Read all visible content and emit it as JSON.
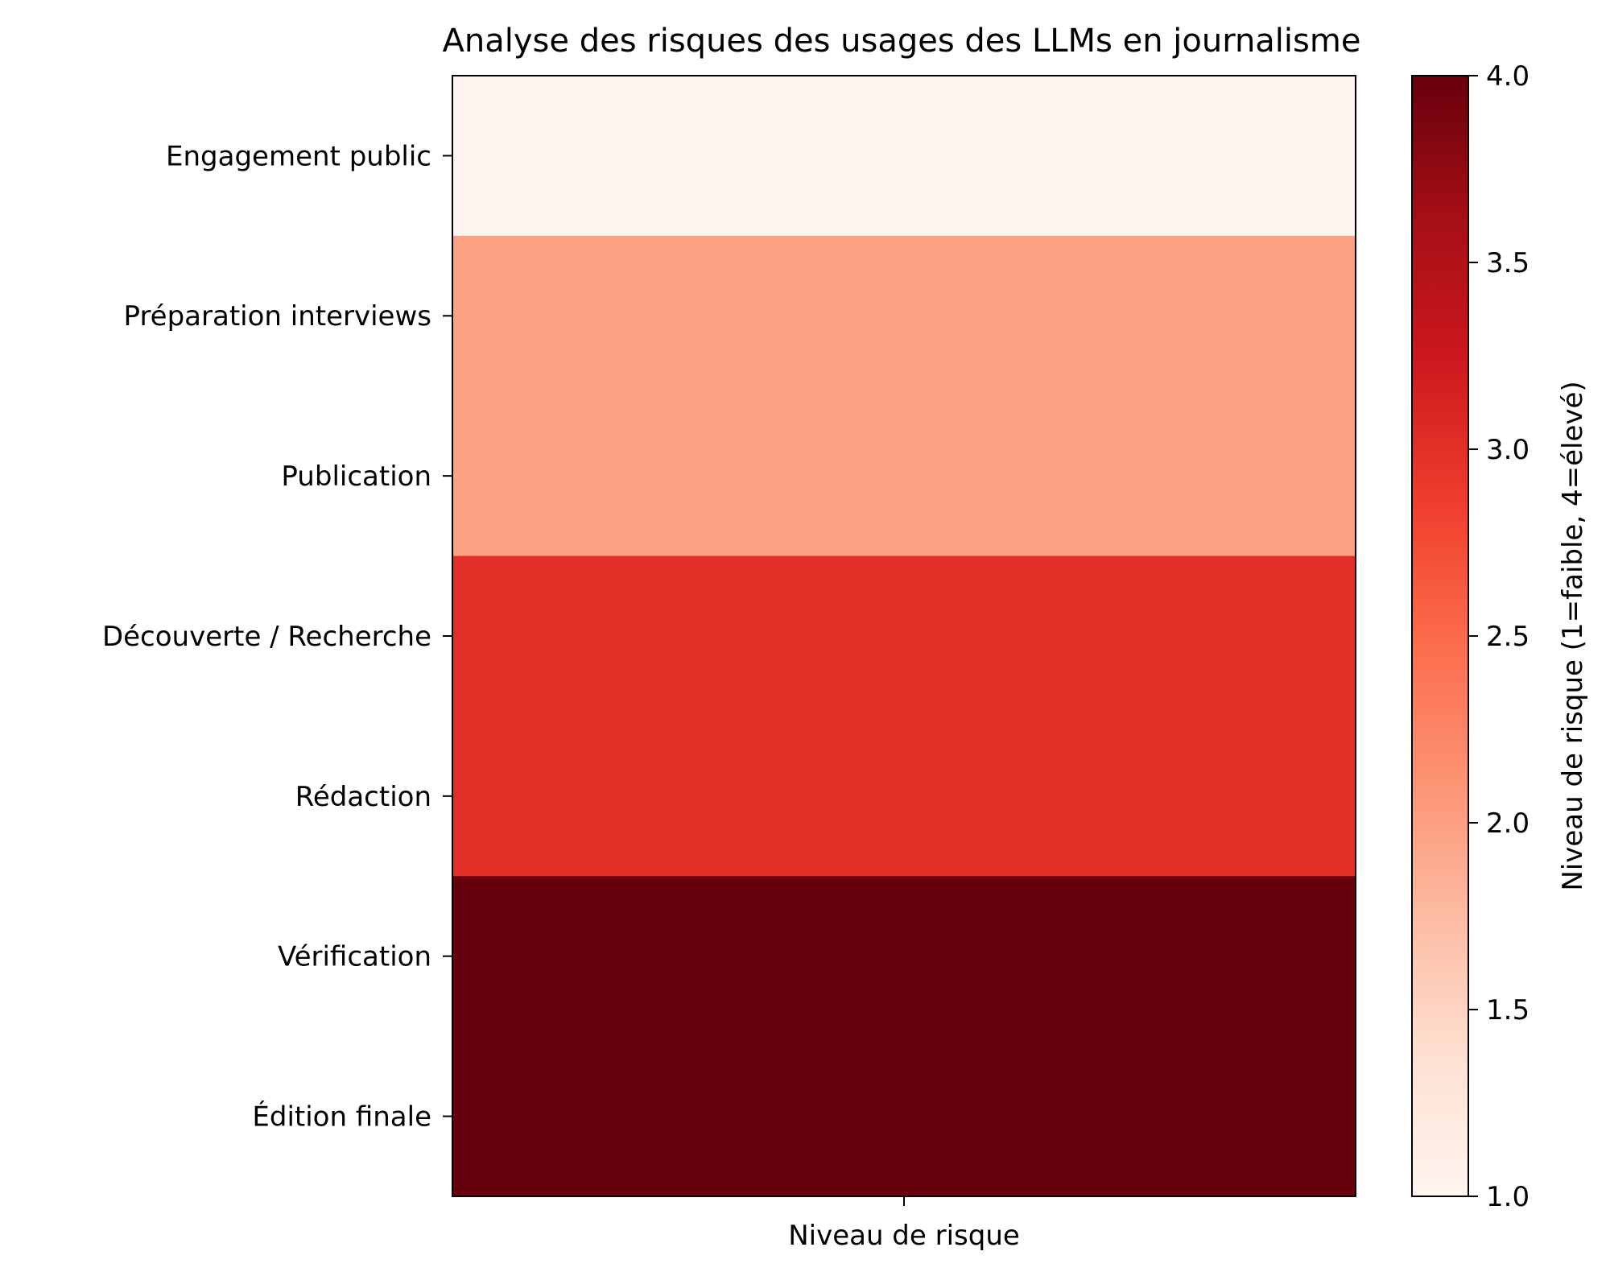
{
  "chart_data": {
    "type": "heatmap",
    "title": "Analyse des risques des usages des LLMs en journalisme",
    "xlabel": "Niveau de risque",
    "x_categories": [
      "Niveau de risque"
    ],
    "rows": [
      {
        "label": "Engagement public",
        "value": 1
      },
      {
        "label": "Préparation interviews",
        "value": 2
      },
      {
        "label": "Publication",
        "value": 2
      },
      {
        "label": "Découverte / Recherche",
        "value": 3
      },
      {
        "label": "Rédaction",
        "value": 3
      },
      {
        "label": "Vérification",
        "value": 4
      },
      {
        "label": "Édition finale",
        "value": 4
      }
    ],
    "colorbar": {
      "label": "Niveau de risque (1=faible, 4=élevé)",
      "range": [
        1.0,
        4.0
      ],
      "ticks": [
        "1.0",
        "1.5",
        "2.0",
        "2.5",
        "3.0",
        "3.5",
        "4.0"
      ],
      "colormap": "Reds"
    },
    "grid": false
  }
}
